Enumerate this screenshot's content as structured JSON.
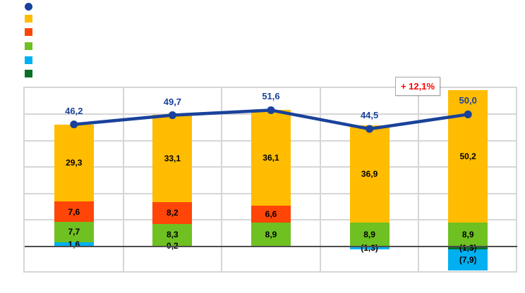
{
  "legend": {
    "items": [
      {
        "name": "total-line-series",
        "marker": "circle",
        "color": "#1A429B",
        "label": ""
      },
      {
        "name": "series-orange",
        "marker": "square",
        "color": "#FFBC00",
        "label": ""
      },
      {
        "name": "series-red",
        "marker": "square",
        "color": "#FF4508",
        "label": ""
      },
      {
        "name": "series-green",
        "marker": "square",
        "color": "#6FC021",
        "label": ""
      },
      {
        "name": "series-cyan",
        "marker": "square",
        "color": "#00B0F0",
        "label": ""
      },
      {
        "name": "series-darkgreen",
        "marker": "square",
        "color": "#077026",
        "label": ""
      }
    ]
  },
  "annotation": {
    "text": "+ 12,1%",
    "color": "#FF0000"
  },
  "chart_data": {
    "type": "bar",
    "subtype": "stacked-columns-with-total-line",
    "title": "",
    "xlabel": "",
    "ylabel": "",
    "categories": [
      "",
      "",
      "",
      "",
      ""
    ],
    "ylim": [
      -10,
      60
    ],
    "grid_step": 10,
    "grid": true,
    "legend_position": "top-left",
    "decimal_separator": "comma",
    "stack_order": "bottom-to-top",
    "series": [
      {
        "name": "darkgreen",
        "color": "#077026",
        "values": [
          0,
          0,
          0,
          0,
          -1.3
        ],
        "labels": [
          "",
          "",
          "",
          "",
          "(1,3)"
        ]
      },
      {
        "name": "cyan",
        "color": "#00B0F0",
        "values": [
          1.6,
          0.2,
          0,
          -1.3,
          -7.9
        ],
        "labels": [
          "1,6",
          "0,2",
          "",
          "(1,3)",
          "(7,9)"
        ]
      },
      {
        "name": "green",
        "color": "#6FC021",
        "values": [
          7.7,
          8.3,
          8.9,
          8.9,
          8.9
        ],
        "labels": [
          "7,7",
          "8,3",
          "8,9",
          "8,9",
          "8,9"
        ]
      },
      {
        "name": "red",
        "color": "#FF4508",
        "values": [
          7.6,
          8.2,
          6.6,
          0,
          0
        ],
        "labels": [
          "7,6",
          "8,2",
          "6,6",
          "",
          ""
        ]
      },
      {
        "name": "orange",
        "color": "#FFBC00",
        "values": [
          29.3,
          33.1,
          36.1,
          36.9,
          50.2
        ],
        "labels": [
          "29,3",
          "33,1",
          "36,1",
          "36,9",
          "50,2"
        ]
      }
    ],
    "line_series": {
      "name": "total",
      "color": "#1A429B",
      "values": [
        46.2,
        49.7,
        51.6,
        44.5,
        50.0
      ],
      "labels": [
        "46,2",
        "49,7",
        "51,6",
        "44,5",
        "50,0"
      ]
    },
    "annotation_text": "+ 12,1%"
  }
}
